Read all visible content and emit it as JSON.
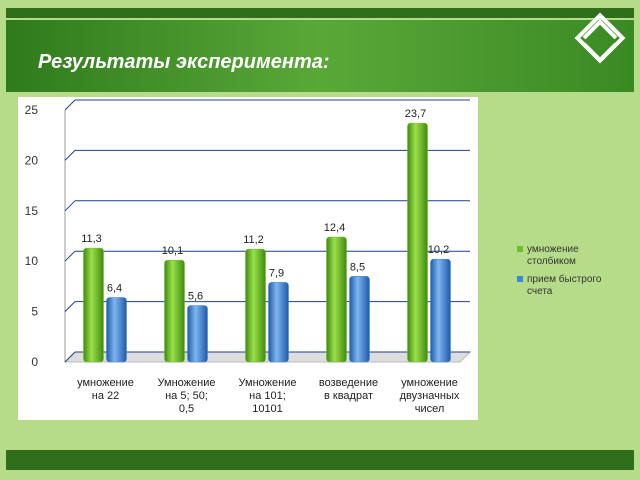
{
  "title": "Результаты эксперимента:",
  "chart_data": {
    "type": "bar",
    "categories": [
      [
        "умножение",
        "на 22"
      ],
      [
        "Умножение",
        "на 5;   50;",
        "0,5"
      ],
      [
        "Умножение",
        "на  101;",
        "10101"
      ],
      [
        "возведение",
        "в квадрат"
      ],
      [
        "умножение",
        "двузначных",
        "чисел"
      ]
    ],
    "series": [
      {
        "name": "умножение столбиком",
        "color": "#6cc02a",
        "values": [
          11.3,
          10.1,
          11.2,
          12.4,
          23.7
        ],
        "value_labels": [
          "11,3",
          "10,1",
          "11,2",
          "12,4",
          "23,7"
        ]
      },
      {
        "name": "прием быстрого счета",
        "color": "#3f86d8",
        "values": [
          6.4,
          5.6,
          7.9,
          8.5,
          10.2
        ],
        "value_labels": [
          "6,4",
          "5,6",
          "7,9",
          "8,5",
          "10,2"
        ]
      }
    ],
    "ylim": [
      0,
      25
    ],
    "yticks": [
      0,
      5,
      10,
      15,
      20,
      25
    ],
    "grid": true,
    "legend": "right"
  }
}
